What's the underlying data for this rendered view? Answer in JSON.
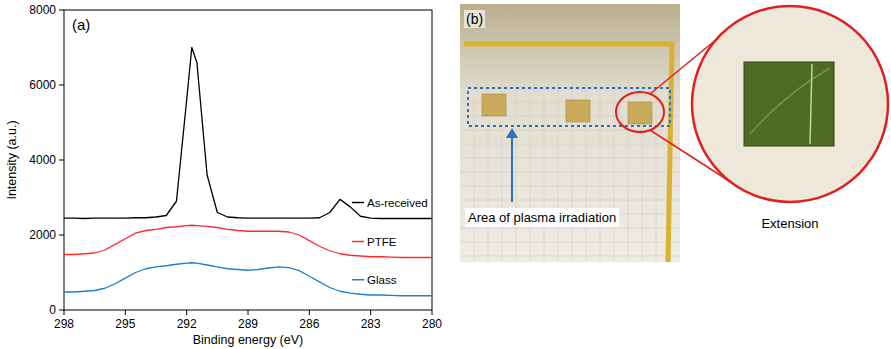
{
  "chart_data": {
    "type": "line",
    "title": "(a)",
    "x_label": "Binding energy (eV)",
    "y_label": "Intensity (a.u.)",
    "x": [
      298,
      297.5,
      297,
      296.5,
      296,
      295.5,
      295,
      294.5,
      294,
      293.5,
      293,
      292.5,
      292,
      291.75,
      291.5,
      291,
      290.5,
      290,
      289.5,
      289,
      288.5,
      288,
      287.5,
      287,
      286.5,
      286,
      285.5,
      285,
      284.5,
      284,
      283.5,
      283,
      282.5,
      282,
      281.5,
      281,
      280.5,
      280
    ],
    "series": [
      {
        "name": "As-received",
        "color": "#000000",
        "values": [
          2450,
          2450,
          2440,
          2450,
          2450,
          2450,
          2450,
          2460,
          2460,
          2480,
          2520,
          2900,
          5600,
          7000,
          6600,
          3600,
          2600,
          2480,
          2460,
          2450,
          2450,
          2450,
          2450,
          2450,
          2450,
          2450,
          2460,
          2600,
          2950,
          2750,
          2500,
          2450,
          2440,
          2440,
          2440,
          2440,
          2440,
          2440
        ]
      },
      {
        "name": "PTFE",
        "color": "#ff2a2a",
        "values": [
          1480,
          1480,
          1500,
          1520,
          1600,
          1750,
          1900,
          2050,
          2120,
          2150,
          2200,
          2220,
          2250,
          2260,
          2250,
          2230,
          2200,
          2150,
          2120,
          2100,
          2100,
          2100,
          2100,
          2080,
          2000,
          1850,
          1700,
          1580,
          1500,
          1460,
          1440,
          1420,
          1420,
          1410,
          1400,
          1400,
          1400,
          1400
        ]
      },
      {
        "name": "Glass",
        "color": "#1f7ec8",
        "values": [
          480,
          480,
          500,
          520,
          580,
          700,
          850,
          1000,
          1100,
          1150,
          1180,
          1220,
          1250,
          1260,
          1250,
          1200,
          1150,
          1100,
          1080,
          1060,
          1080,
          1120,
          1150,
          1130,
          1050,
          900,
          750,
          600,
          500,
          450,
          420,
          400,
          400,
          390,
          380,
          380,
          380,
          380
        ]
      }
    ],
    "xlim": [
      298,
      280
    ],
    "xticks": [
      298,
      295,
      292,
      289,
      286,
      283,
      280
    ],
    "ylim": [
      0,
      8000
    ],
    "yticks": [
      0,
      2000,
      4000,
      6000,
      8000
    ],
    "grid": false,
    "legend": "right"
  },
  "photo_panel": {
    "label": "(b)",
    "annotation": "Area of plasma irradiation",
    "inset_label": "Extension"
  }
}
